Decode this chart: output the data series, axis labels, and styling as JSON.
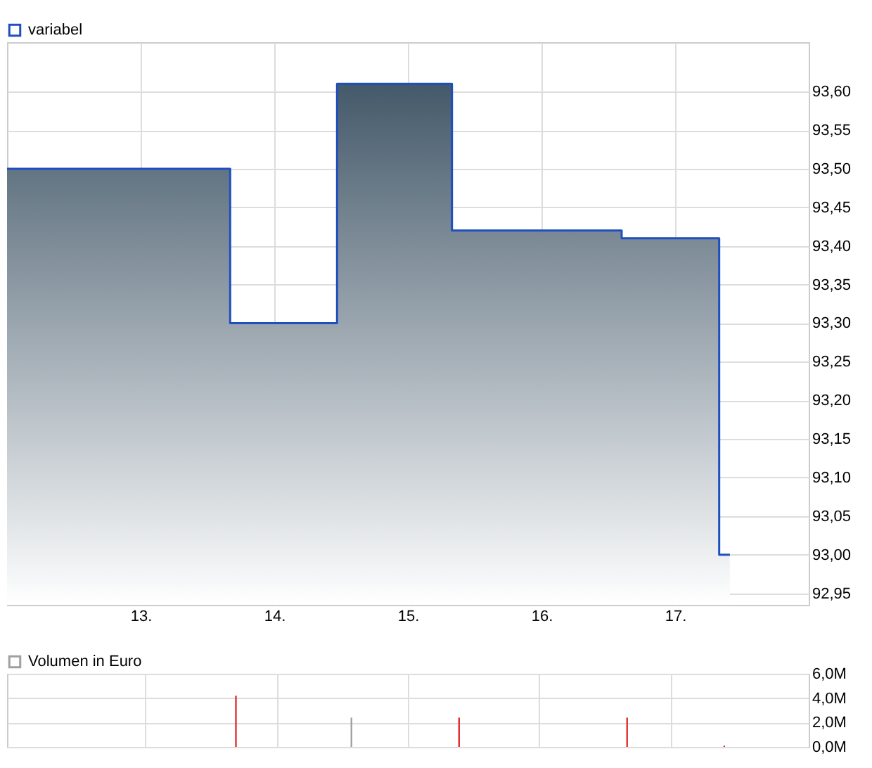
{
  "chart_data": [
    {
      "type": "area",
      "x": [
        12,
        13.67,
        13.67,
        14.47,
        14.47,
        15.33,
        15.33,
        16.6,
        16.6,
        17.33,
        17.33,
        17.41
      ],
      "series": [
        {
          "name": "variabel",
          "color": "#1f4fbf",
          "values": [
            93.5,
            93.5,
            93.3,
            93.3,
            93.61,
            93.61,
            93.42,
            93.42,
            93.41,
            93.41,
            93.0,
            93.0
          ]
        }
      ],
      "xlim": [
        12,
        18
      ],
      "xticks": [
        {
          "value": 13,
          "label": "13."
        },
        {
          "value": 14,
          "label": "14."
        },
        {
          "value": 15,
          "label": "15."
        },
        {
          "value": 16,
          "label": "16."
        },
        {
          "value": 17,
          "label": "17."
        }
      ],
      "ylim": [
        92.935,
        93.664
      ],
      "yticks": [
        {
          "value": 92.95,
          "label": "92,95"
        },
        {
          "value": 93.0,
          "label": "93,00"
        },
        {
          "value": 93.05,
          "label": "93,05"
        },
        {
          "value": 93.1,
          "label": "93,10"
        },
        {
          "value": 93.15,
          "label": "93,15"
        },
        {
          "value": 93.2,
          "label": "93,20"
        },
        {
          "value": 93.25,
          "label": "93,25"
        },
        {
          "value": 93.3,
          "label": "93,30"
        },
        {
          "value": 93.35,
          "label": "93,35"
        },
        {
          "value": 93.4,
          "label": "93,40"
        },
        {
          "value": 93.45,
          "label": "93,45"
        },
        {
          "value": 93.5,
          "label": "93,50"
        },
        {
          "value": 93.55,
          "label": "93,55"
        },
        {
          "value": 93.6,
          "label": "93,60"
        }
      ],
      "grid": true,
      "legend": "top left"
    },
    {
      "type": "bar",
      "x": [
        13.69,
        14.57,
        15.39,
        16.67,
        17.41
      ],
      "series": [
        {
          "name": "Volumen in Euro",
          "color": "#a0a0a0",
          "values": [
            4.2,
            2.4,
            2.4,
            2.4,
            0.1
          ],
          "colors": [
            "#e03030",
            "#a0a0a0",
            "#e03030",
            "#e03030",
            "#e03030"
          ]
        }
      ],
      "xlim": [
        12,
        18
      ],
      "xticks": [
        13,
        14,
        15,
        16,
        17
      ],
      "ylim": [
        0,
        6
      ],
      "yticks": [
        {
          "value": 0,
          "label": "0,0M"
        },
        {
          "value": 2,
          "label": "2,0M"
        },
        {
          "value": 4,
          "label": "4,0M"
        },
        {
          "value": 6,
          "label": "6,0M"
        }
      ],
      "grid": true,
      "legend": "top left",
      "tick_labels": "y"
    }
  ]
}
